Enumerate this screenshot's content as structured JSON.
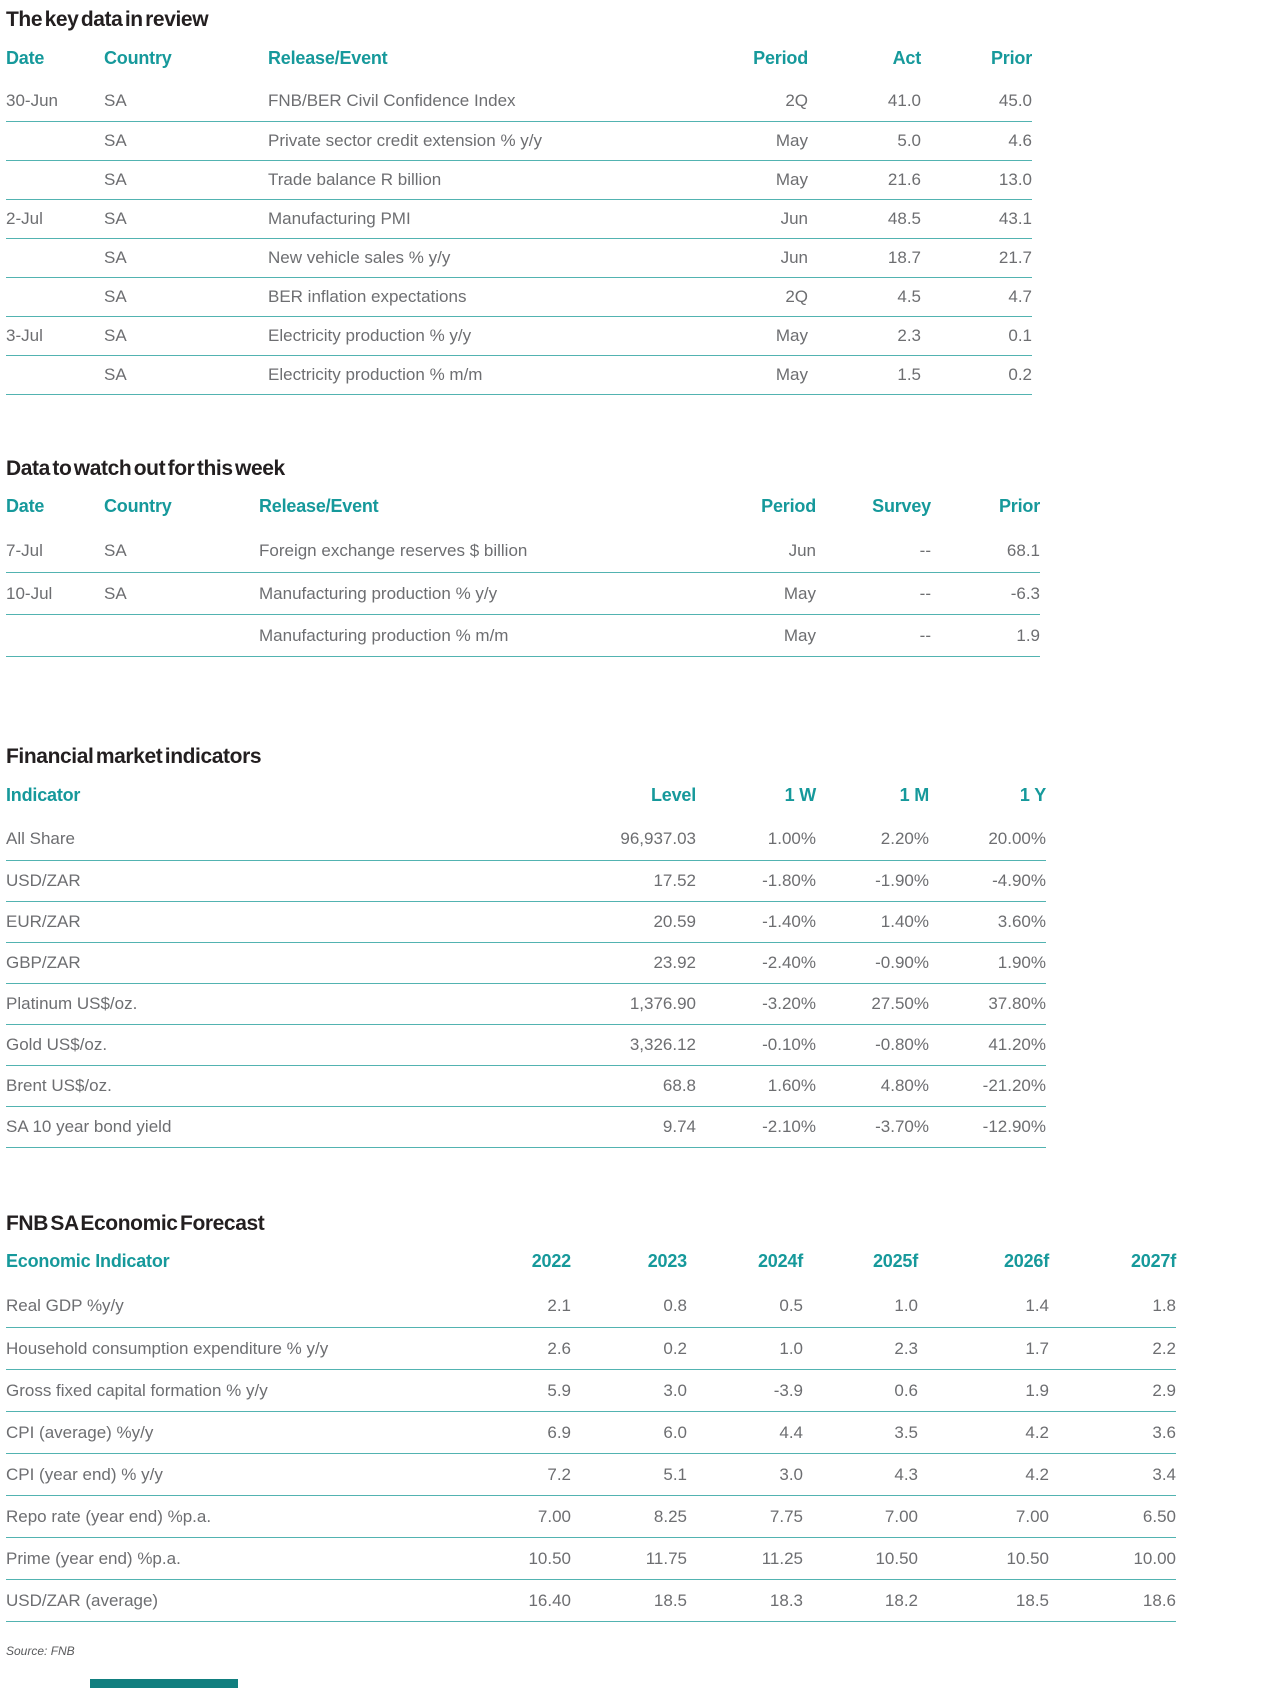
{
  "colors": {
    "header_teal": "#16999B",
    "rule_teal": "#52B3B1",
    "title_text": "#231F20",
    "body_text": "#6D6E71",
    "accent_bar": "#117F7F"
  },
  "tables": [
    {
      "title": "The key data in review",
      "columns": [
        "Date",
        "Country",
        "Release/Event",
        "Period",
        "Act",
        "Prior"
      ],
      "rows": [
        [
          "30-Jun",
          "SA",
          "FNB/BER Civil Confidence Index",
          "2Q",
          "41.0",
          "45.0"
        ],
        [
          "",
          "SA",
          "Private sector credit extension % y/y",
          "May",
          "5.0",
          "4.6"
        ],
        [
          "",
          "SA",
          "Trade balance R billion",
          "May",
          "21.6",
          "13.0"
        ],
        [
          "2-Jul",
          "SA",
          "Manufacturing PMI",
          "Jun",
          "48.5",
          "43.1"
        ],
        [
          "",
          "SA",
          "New vehicle sales % y/y",
          "Jun",
          "18.7",
          "21.7"
        ],
        [
          "",
          "SA",
          "BER inflation expectations",
          "2Q",
          "4.5",
          "4.7"
        ],
        [
          "3-Jul",
          "SA",
          "Electricity production % y/y",
          "May",
          "2.3",
          "0.1"
        ],
        [
          "",
          "SA",
          "Electricity production % m/m",
          "May",
          "1.5",
          "0.2"
        ]
      ]
    },
    {
      "title": "Data to watch out for this week",
      "columns": [
        "Date",
        "Country",
        "Release/Event",
        "Period",
        "Survey",
        "Prior"
      ],
      "rows": [
        [
          "7-Jul",
          "SA",
          "Foreign exchange reserves $ billion",
          "Jun",
          "--",
          "68.1"
        ],
        [
          "10-Jul",
          "SA",
          "Manufacturing production % y/y",
          "May",
          "--",
          "-6.3"
        ],
        [
          "",
          "",
          "Manufacturing production % m/m",
          "May",
          "--",
          "1.9"
        ]
      ]
    },
    {
      "title": "Financial market indicators",
      "columns": [
        "Indicator",
        "Level",
        "1 W",
        "1 M",
        "1 Y"
      ],
      "rows": [
        [
          "All Share",
          "96,937.03",
          "1.00%",
          "2.20%",
          "20.00%"
        ],
        [
          "USD/ZAR",
          "17.52",
          "-1.80%",
          "-1.90%",
          "-4.90%"
        ],
        [
          "EUR/ZAR",
          "20.59",
          "-1.40%",
          "1.40%",
          "3.60%"
        ],
        [
          "GBP/ZAR",
          "23.92",
          "-2.40%",
          "-0.90%",
          "1.90%"
        ],
        [
          "Platinum US$/oz.",
          "1,376.90",
          "-3.20%",
          "27.50%",
          "37.80%"
        ],
        [
          "Gold US$/oz.",
          "3,326.12",
          "-0.10%",
          "-0.80%",
          "41.20%"
        ],
        [
          "Brent US$/oz.",
          "68.8",
          "1.60%",
          "4.80%",
          "-21.20%"
        ],
        [
          "SA 10 year bond yield",
          "9.74",
          "-2.10%",
          "-3.70%",
          "-12.90%"
        ]
      ]
    },
    {
      "title": "FNB SA Economic Forecast",
      "columns": [
        "Economic Indicator",
        "2022",
        "2023",
        "2024f",
        "2025f",
        "2026f",
        "2027f"
      ],
      "rows": [
        [
          "Real GDP %y/y",
          "2.1",
          "0.8",
          "0.5",
          "1.0",
          "1.4",
          "1.8"
        ],
        [
          "Household consumption expenditure % y/y",
          "2.6",
          "0.2",
          "1.0",
          "2.3",
          "1.7",
          "2.2"
        ],
        [
          "Gross fixed capital formation % y/y",
          "5.9",
          "3.0",
          "-3.9",
          "0.6",
          "1.9",
          "2.9"
        ],
        [
          "CPI (average) %y/y",
          "6.9",
          "6.0",
          "4.4",
          "3.5",
          "4.2",
          "3.6"
        ],
        [
          "CPI (year end) % y/y",
          "7.2",
          "5.1",
          "3.0",
          "4.3",
          "4.2",
          "3.4"
        ],
        [
          "Repo rate (year end) %p.a.",
          "7.00",
          "8.25",
          "7.75",
          "7.00",
          "7.00",
          "6.50"
        ],
        [
          "Prime (year end) %p.a.",
          "10.50",
          "11.75",
          "11.25",
          "10.50",
          "10.50",
          "10.00"
        ],
        [
          "USD/ZAR (average)",
          "16.40",
          "18.5",
          "18.3",
          "18.2",
          "18.5",
          "18.6"
        ]
      ]
    }
  ],
  "footer": {
    "source": "Source: FNB"
  }
}
